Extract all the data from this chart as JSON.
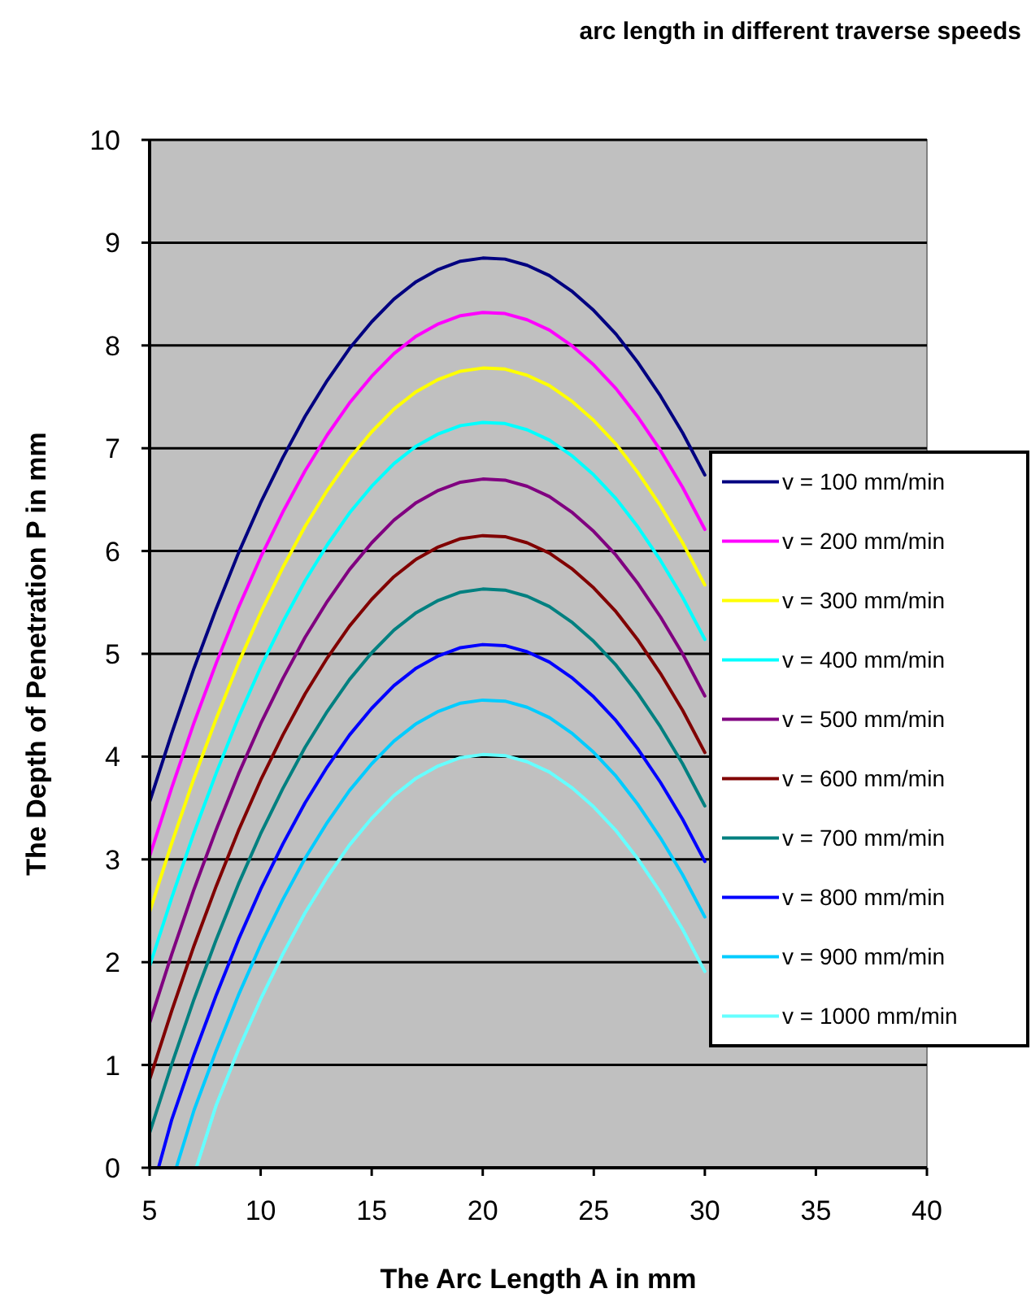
{
  "chart_data": {
    "type": "line",
    "title": "arc length in different traverse speeds",
    "xlabel": "The Arc Length A in mm",
    "ylabel": "The Depth of Penetration P in mm",
    "xlim": [
      5,
      40
    ],
    "xticks": [
      5,
      10,
      15,
      20,
      25,
      30,
      35,
      40
    ],
    "ylim": [
      0,
      10
    ],
    "yticks": [
      0,
      1,
      2,
      3,
      4,
      5,
      6,
      7,
      8,
      9,
      10
    ],
    "grid": "y",
    "legend": "right",
    "marker": "none",
    "line_style": "solid",
    "x": [
      5,
      6,
      7,
      8,
      9,
      10,
      11,
      12,
      13,
      14,
      15,
      16,
      17,
      18,
      19,
      20,
      21,
      22,
      23,
      24,
      25,
      26,
      27,
      28,
      29,
      30
    ],
    "series": [
      {
        "name": "v = 100 mm/min",
        "color": "#000080",
        "values": [
          3.56,
          4.23,
          4.86,
          5.44,
          5.98,
          6.47,
          6.91,
          7.31,
          7.66,
          7.97,
          8.23,
          8.45,
          8.62,
          8.74,
          8.82,
          8.85,
          8.84,
          8.78,
          8.68,
          8.53,
          8.34,
          8.11,
          7.83,
          7.51,
          7.15,
          6.74
        ]
      },
      {
        "name": "v = 200 mm/min",
        "color": "#ff00ff",
        "values": [
          3.03,
          3.7,
          4.33,
          4.91,
          5.45,
          5.94,
          6.38,
          6.78,
          7.13,
          7.44,
          7.7,
          7.92,
          8.09,
          8.21,
          8.29,
          8.32,
          8.31,
          8.25,
          8.15,
          8.0,
          7.81,
          7.58,
          7.3,
          6.98,
          6.62,
          6.21
        ]
      },
      {
        "name": "v = 300 mm/min",
        "color": "#ffff00",
        "values": [
          2.49,
          3.16,
          3.79,
          4.37,
          4.91,
          5.4,
          5.84,
          6.24,
          6.59,
          6.9,
          7.16,
          7.38,
          7.55,
          7.67,
          7.75,
          7.78,
          7.77,
          7.71,
          7.61,
          7.46,
          7.27,
          7.04,
          6.76,
          6.44,
          6.08,
          5.67
        ]
      },
      {
        "name": "v = 400 mm/min",
        "color": "#00ffff",
        "values": [
          1.96,
          2.63,
          3.26,
          3.84,
          4.38,
          4.87,
          5.31,
          5.71,
          6.06,
          6.37,
          6.63,
          6.85,
          7.02,
          7.14,
          7.22,
          7.25,
          7.24,
          7.18,
          7.08,
          6.93,
          6.74,
          6.51,
          6.23,
          5.91,
          5.55,
          5.14
        ]
      },
      {
        "name": "v = 500 mm/min",
        "color": "#800080",
        "values": [
          1.41,
          2.08,
          2.71,
          3.29,
          3.83,
          4.32,
          4.76,
          5.16,
          5.51,
          5.82,
          6.08,
          6.3,
          6.47,
          6.59,
          6.67,
          6.7,
          6.69,
          6.63,
          6.53,
          6.38,
          6.19,
          5.96,
          5.68,
          5.36,
          5.0,
          4.59
        ]
      },
      {
        "name": "v = 600 mm/min",
        "color": "#800000",
        "values": [
          0.86,
          1.53,
          2.16,
          2.74,
          3.28,
          3.77,
          4.21,
          4.61,
          4.96,
          5.27,
          5.53,
          5.75,
          5.92,
          6.04,
          6.12,
          6.15,
          6.14,
          6.08,
          5.98,
          5.83,
          5.64,
          5.41,
          5.13,
          4.81,
          4.45,
          4.04
        ]
      },
      {
        "name": "v = 700 mm/min",
        "color": "#008080",
        "values": [
          0.34,
          1.01,
          1.64,
          2.22,
          2.76,
          3.25,
          3.69,
          4.09,
          4.44,
          4.75,
          5.01,
          5.23,
          5.4,
          5.52,
          5.6,
          5.63,
          5.62,
          5.56,
          5.46,
          5.31,
          5.12,
          4.89,
          4.61,
          4.29,
          3.93,
          3.52
        ]
      },
      {
        "name": "v = 800 mm/min",
        "color": "#0000ff",
        "x": [
          5.4,
          6,
          7,
          8,
          9,
          10,
          11,
          12,
          13,
          14,
          15,
          16,
          17,
          18,
          19,
          20,
          21,
          22,
          23,
          24,
          25,
          26,
          27,
          28,
          29,
          30
        ],
        "values": [
          0,
          0.47,
          1.1,
          1.68,
          2.22,
          2.71,
          3.15,
          3.55,
          3.9,
          4.21,
          4.47,
          4.69,
          4.86,
          4.98,
          5.06,
          5.09,
          5.08,
          5.02,
          4.92,
          4.77,
          4.58,
          4.35,
          4.07,
          3.75,
          3.39,
          2.98
        ]
      },
      {
        "name": "v = 900 mm/min",
        "color": "#00ccff",
        "x": [
          6.2,
          7,
          8,
          9,
          10,
          11,
          12,
          13,
          14,
          15,
          16,
          17,
          18,
          19,
          20,
          21,
          22,
          23,
          24,
          25,
          26,
          27,
          28,
          29,
          30
        ],
        "values": [
          0,
          0.56,
          1.14,
          1.68,
          2.17,
          2.61,
          3.01,
          3.36,
          3.67,
          3.93,
          4.15,
          4.32,
          4.44,
          4.52,
          4.55,
          4.54,
          4.48,
          4.38,
          4.23,
          4.04,
          3.81,
          3.53,
          3.21,
          2.85,
          2.44
        ]
      },
      {
        "name": "v = 1000 mm/min",
        "color": "#66ffff",
        "x": [
          7.1,
          8,
          9,
          10,
          11,
          12,
          13,
          14,
          15,
          16,
          17,
          18,
          19,
          20,
          21,
          22,
          23,
          24,
          25,
          26,
          27,
          28,
          29,
          30
        ],
        "values": [
          0,
          0.61,
          1.15,
          1.64,
          2.08,
          2.48,
          2.83,
          3.14,
          3.4,
          3.62,
          3.79,
          3.91,
          3.99,
          4.02,
          4.01,
          3.95,
          3.85,
          3.7,
          3.51,
          3.28,
          3.0,
          2.68,
          2.32,
          1.91
        ]
      }
    ]
  }
}
